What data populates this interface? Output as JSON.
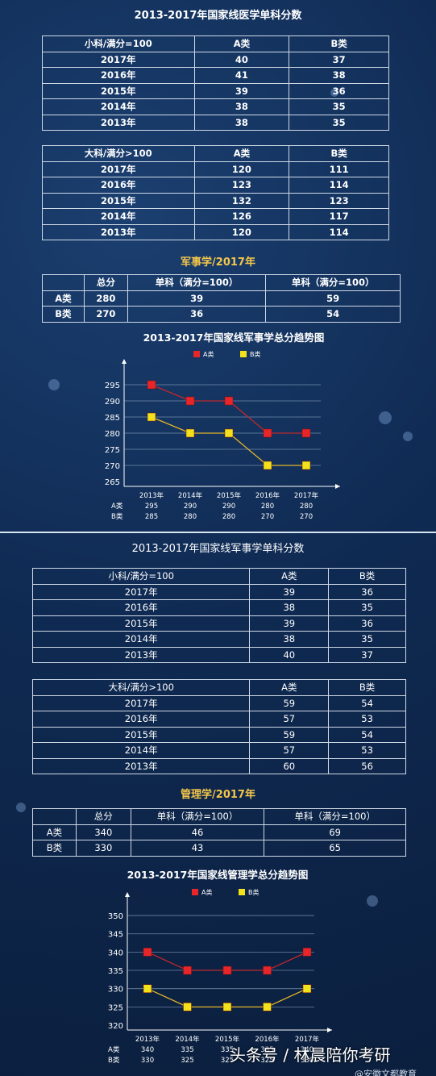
{
  "medicine": {
    "title": "2013-2017年国家线医学单科分数",
    "undergrad": {
      "header": [
        "小科/满分=100",
        "A类",
        "B类"
      ],
      "rows": [
        [
          "2017年",
          "40",
          "37"
        ],
        [
          "2016年",
          "41",
          "38"
        ],
        [
          "2015年",
          "39",
          "36"
        ],
        [
          "2014年",
          "38",
          "35"
        ],
        [
          "2013年",
          "38",
          "35"
        ]
      ]
    },
    "major": {
      "header": [
        "大科/满分>100",
        "A类",
        "B类"
      ],
      "rows": [
        [
          "2017年",
          "120",
          "111"
        ],
        [
          "2016年",
          "123",
          "114"
        ],
        [
          "2015年",
          "132",
          "123"
        ],
        [
          "2014年",
          "126",
          "117"
        ],
        [
          "2013年",
          "120",
          "114"
        ]
      ]
    }
  },
  "military": {
    "subtitle": "军事学/2017年",
    "summary": {
      "header": [
        "",
        "总分",
        "单科（满分=100）",
        "单科（满分=100）"
      ],
      "rows": [
        [
          "A类",
          "280",
          "39",
          "59"
        ],
        [
          "B类",
          "270",
          "36",
          "54"
        ]
      ]
    },
    "single": {
      "title": "2013-2017年国家线军事学单科分数",
      "undergrad": {
        "header": [
          "小科/满分=100",
          "A类",
          "B类"
        ],
        "rows": [
          [
            "2017年",
            "39",
            "36"
          ],
          [
            "2016年",
            "38",
            "35"
          ],
          [
            "2015年",
            "39",
            "36"
          ],
          [
            "2014年",
            "38",
            "35"
          ],
          [
            "2013年",
            "40",
            "37"
          ]
        ]
      },
      "major": {
        "header": [
          "大科/满分>100",
          "A类",
          "B类"
        ],
        "rows": [
          [
            "2017年",
            "59",
            "54"
          ],
          [
            "2016年",
            "57",
            "53"
          ],
          [
            "2015年",
            "59",
            "54"
          ],
          [
            "2014年",
            "57",
            "53"
          ],
          [
            "2013年",
            "60",
            "56"
          ]
        ]
      }
    }
  },
  "management": {
    "subtitle": "管理学/2017年",
    "summary": {
      "header": [
        "",
        "总分",
        "单科（满分=100）",
        "单科（满分=100）"
      ],
      "rows": [
        [
          "A类",
          "340",
          "46",
          "69"
        ],
        [
          "B类",
          "330",
          "43",
          "65"
        ]
      ]
    }
  },
  "chart_data": [
    {
      "type": "line",
      "title": "2013-2017年国家线军事学总分趋势图",
      "categories": [
        "2013年",
        "2014年",
        "2015年",
        "2016年",
        "2017年"
      ],
      "series": [
        {
          "name": "A类",
          "values": [
            295,
            290,
            290,
            280,
            280
          ],
          "color": "#e8262a",
          "line": "#c0282c"
        },
        {
          "name": "B类",
          "values": [
            285,
            280,
            280,
            270,
            270
          ],
          "color": "#f2e21b",
          "line": "#e3b52a"
        }
      ],
      "yticks": [
        265,
        270,
        275,
        280,
        285,
        290,
        295
      ],
      "ylim": [
        265,
        298
      ],
      "legend": "top",
      "grid": true
    },
    {
      "type": "line",
      "title": "2013-2017年国家线管理学总分趋势图",
      "categories": [
        "2013年",
        "2014年",
        "2015年",
        "2016年",
        "2017年"
      ],
      "series": [
        {
          "name": "A类",
          "values": [
            340,
            335,
            335,
            335,
            340
          ],
          "color": "#e8262a",
          "line": "#c0282c"
        },
        {
          "name": "B类",
          "values": [
            330,
            325,
            325,
            325,
            330
          ],
          "color": "#f2e21b",
          "line": "#e3b52a"
        }
      ],
      "yticks": [
        320,
        325,
        330,
        335,
        340,
        345,
        350
      ],
      "ylim": [
        320,
        352
      ],
      "legend": "top",
      "grid": true
    }
  ],
  "watermark": {
    "main": "头条号 / 林晨陪你考研",
    "sub": "@安徽文都教育"
  }
}
